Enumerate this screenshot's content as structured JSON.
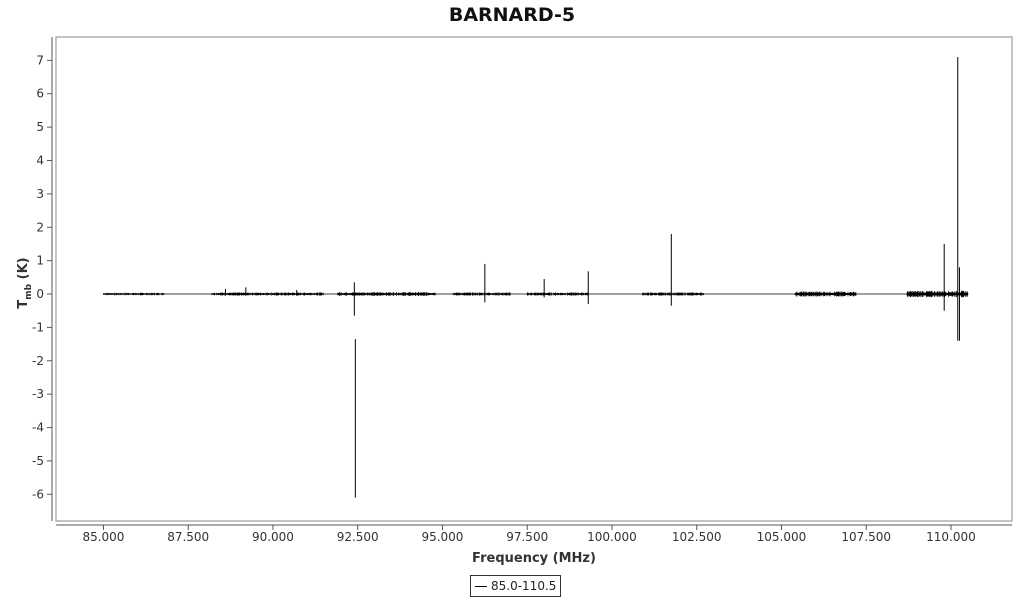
{
  "chart_data": {
    "type": "line",
    "title": "BARNARD-5",
    "xlabel": "Frequency (MHz)",
    "ylabel": {
      "main": "T",
      "sub": "mb",
      "unit": " (K)"
    },
    "xlim": [
      83.6,
      111.8
    ],
    "ylim": [
      -6.8,
      7.7
    ],
    "xticks": [
      85,
      87.5,
      90,
      92.5,
      95,
      97.5,
      100,
      102.5,
      105,
      107.5,
      110
    ],
    "xtick_labels": [
      "85.000",
      "87.500",
      "90.000",
      "92.500",
      "95.000",
      "97.500",
      "100.000",
      "102.500",
      "105.000",
      "107.500",
      "110.000"
    ],
    "yticks": [
      -6,
      -5,
      -4,
      -3,
      -2,
      -1,
      0,
      1,
      2,
      3,
      4,
      5,
      6,
      7
    ],
    "ytick_labels": [
      "-6",
      "-5",
      "-4",
      "-3",
      "-2",
      "-1",
      "0",
      "1",
      "2",
      "3",
      "4",
      "5",
      "6",
      "7"
    ],
    "legend_position": "bottom-center",
    "grid": false,
    "series": [
      {
        "name": "85.0-110.5",
        "color": "#000000",
        "baseline_range": [
          85.0,
          110.5
        ],
        "bands": [
          {
            "x_start": 85.0,
            "x_end": 86.8,
            "noise": 0.04
          },
          {
            "x_start": 88.2,
            "x_end": 91.5,
            "noise": 0.05
          },
          {
            "x_start": 91.9,
            "x_end": 94.8,
            "noise": 0.06
          },
          {
            "x_start": 95.3,
            "x_end": 97.0,
            "noise": 0.05
          },
          {
            "x_start": 97.5,
            "x_end": 99.3,
            "noise": 0.05
          },
          {
            "x_start": 100.9,
            "x_end": 102.7,
            "noise": 0.05
          },
          {
            "x_start": 105.4,
            "x_end": 107.2,
            "noise": 0.08
          },
          {
            "x_start": 108.7,
            "x_end": 110.5,
            "noise": 0.1
          }
        ],
        "peaks": [
          {
            "x": 88.6,
            "max": 0.15,
            "min": -0.05
          },
          {
            "x": 89.2,
            "max": 0.2,
            "min": -0.05
          },
          {
            "x": 90.7,
            "max": 0.12,
            "min": -0.05
          },
          {
            "x": 92.4,
            "max": 0.35,
            "min": -0.65
          },
          {
            "x": 92.43,
            "max": -1.35,
            "min": -6.1
          },
          {
            "x": 96.25,
            "max": 0.9,
            "min": -0.25
          },
          {
            "x": 98.0,
            "max": 0.45,
            "min": -0.1
          },
          {
            "x": 99.3,
            "max": 0.68,
            "min": -0.3
          },
          {
            "x": 101.75,
            "max": 1.8,
            "min": -0.35
          },
          {
            "x": 109.8,
            "max": 1.5,
            "min": -0.5
          },
          {
            "x": 110.2,
            "max": 7.1,
            "min": -1.4
          },
          {
            "x": 110.25,
            "max": 0.8,
            "min": -1.4
          }
        ]
      }
    ]
  }
}
